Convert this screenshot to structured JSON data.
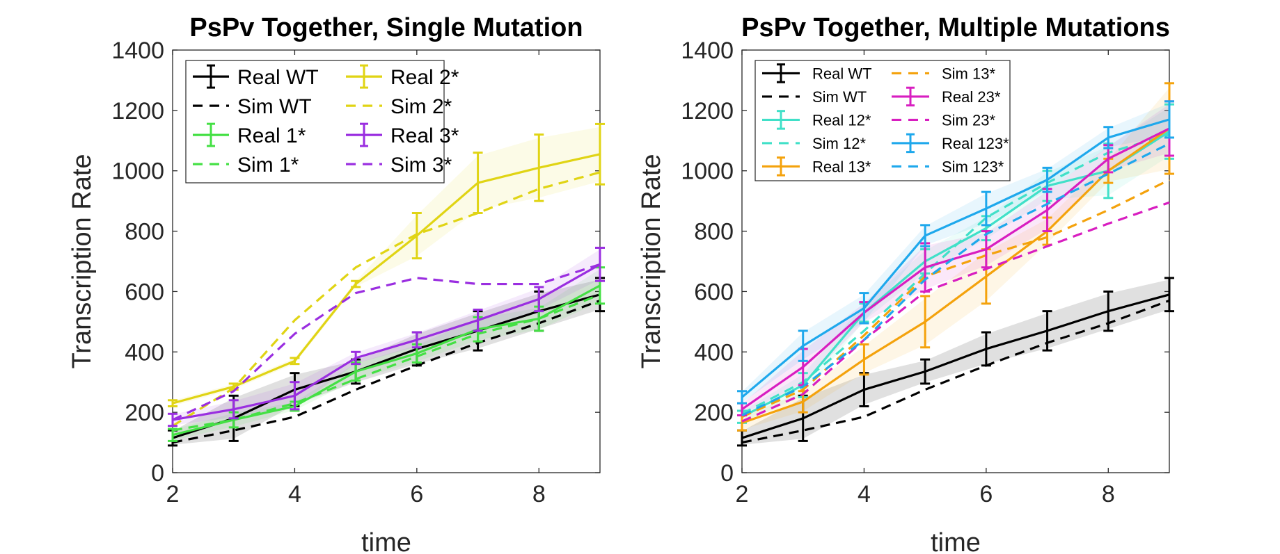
{
  "chart_data": [
    {
      "type": "line",
      "title": "PsPv Together, Single Mutation",
      "xlabel": "time",
      "ylabel": "Transcription Rate",
      "xlim": [
        2,
        9
      ],
      "ylim": [
        0,
        1400
      ],
      "xticks": [
        2,
        4,
        6,
        8
      ],
      "yticks": [
        0,
        200,
        400,
        600,
        800,
        1000,
        1200,
        1400
      ],
      "x": [
        2,
        3,
        4,
        5,
        6,
        7,
        8,
        9
      ],
      "legend_placement": "top-left",
      "legend_columns": 2,
      "series": [
        {
          "name": "Real WT",
          "style": "solid",
          "errorbars": true,
          "color": "#000000",
          "values": [
            115,
            180,
            275,
            335,
            410,
            470,
            535,
            590
          ],
          "errors": [
            25,
            75,
            55,
            40,
            55,
            65,
            65,
            55
          ]
        },
        {
          "name": "Sim WT",
          "style": "dashed",
          "color": "#000000",
          "values": [
            100,
            140,
            185,
            275,
            355,
            430,
            495,
            570
          ]
        },
        {
          "name": "Real 1*",
          "style": "solid",
          "errorbars": true,
          "color": "#44e044",
          "values": [
            125,
            175,
            220,
            335,
            395,
            475,
            510,
            620
          ],
          "errors": [
            20,
            25,
            15,
            30,
            30,
            40,
            40,
            60
          ]
        },
        {
          "name": "Sim 1*",
          "style": "dashed",
          "color": "#44e044",
          "values": [
            140,
            175,
            230,
            310,
            385,
            460,
            510,
            590
          ]
        },
        {
          "name": "Real 2*",
          "style": "solid",
          "errorbars": true,
          "color": "#e0d414",
          "values": [
            230,
            285,
            370,
            625,
            785,
            960,
            1010,
            1055
          ],
          "errors": [
            10,
            10,
            10,
            10,
            75,
            100,
            110,
            100
          ]
        },
        {
          "name": "Sim 2*",
          "style": "dashed",
          "color": "#e0d414",
          "values": [
            155,
            280,
            505,
            680,
            790,
            860,
            940,
            995
          ]
        },
        {
          "name": "Real 3*",
          "style": "solid",
          "errorbars": true,
          "color": "#9a2ee0",
          "values": [
            175,
            210,
            255,
            380,
            440,
            505,
            575,
            690
          ],
          "errors": [
            20,
            30,
            45,
            20,
            25,
            35,
            40,
            55
          ]
        },
        {
          "name": "Sim 3*",
          "style": "dashed",
          "color": "#9a2ee0",
          "values": [
            175,
            270,
            460,
            595,
            645,
            625,
            625,
            690
          ]
        }
      ]
    },
    {
      "type": "line",
      "title": "PsPv Together, Multiple Mutations",
      "xlabel": "time",
      "ylabel": "Transcription Rate",
      "xlim": [
        2,
        9
      ],
      "ylim": [
        0,
        1400
      ],
      "xticks": [
        2,
        4,
        6,
        8
      ],
      "yticks": [
        0,
        200,
        400,
        600,
        800,
        1000,
        1200,
        1400
      ],
      "x": [
        2,
        3,
        4,
        5,
        6,
        7,
        8,
        9
      ],
      "legend_placement": "top-left",
      "legend_columns": 2,
      "series": [
        {
          "name": "Real WT",
          "style": "solid",
          "errorbars": true,
          "color": "#000000",
          "values": [
            115,
            180,
            275,
            335,
            410,
            470,
            535,
            590
          ],
          "errors": [
            25,
            75,
            55,
            40,
            55,
            65,
            65,
            55
          ]
        },
        {
          "name": "Sim WT",
          "style": "dashed",
          "color": "#000000",
          "values": [
            100,
            140,
            185,
            275,
            355,
            430,
            495,
            570
          ]
        },
        {
          "name": "Real 12*",
          "style": "solid",
          "errorbars": true,
          "color": "#40e0c8",
          "values": [
            185,
            290,
            530,
            700,
            810,
            950,
            1000,
            1130
          ],
          "errors": [
            20,
            40,
            30,
            40,
            40,
            50,
            90,
            90
          ]
        },
        {
          "name": "Sim 12*",
          "style": "dashed",
          "color": "#40e0c8",
          "values": [
            195,
            300,
            470,
            660,
            845,
            960,
            1060,
            1120
          ]
        },
        {
          "name": "Real 13*",
          "style": "solid",
          "errorbars": true,
          "color": "#f4a20c",
          "values": [
            165,
            235,
            375,
            500,
            650,
            800,
            1000,
            1140
          ],
          "errors": [
            25,
            35,
            50,
            85,
            90,
            45,
            40,
            150
          ]
        },
        {
          "name": "Sim 13*",
          "style": "dashed",
          "color": "#f4a20c",
          "values": [
            185,
            275,
            455,
            650,
            720,
            780,
            870,
            970
          ]
        },
        {
          "name": "Real 23*",
          "style": "solid",
          "errorbars": true,
          "color": "#d81ec0",
          "values": [
            210,
            350,
            530,
            680,
            740,
            870,
            1040,
            1140
          ],
          "errors": [
            20,
            60,
            35,
            80,
            60,
            70,
            45,
            90
          ]
        },
        {
          "name": "Sim 23*",
          "style": "dashed",
          "color": "#d81ec0",
          "values": [
            170,
            260,
            440,
            600,
            675,
            750,
            825,
            895
          ]
        },
        {
          "name": "Real 123*",
          "style": "solid",
          "errorbars": true,
          "color": "#1ea8ec",
          "values": [
            250,
            420,
            545,
            785,
            875,
            970,
            1110,
            1170
          ],
          "errors": [
            20,
            50,
            50,
            35,
            55,
            40,
            35,
            60
          ]
        },
        {
          "name": "Sim 123*",
          "style": "dashed",
          "color": "#1ea8ec",
          "values": [
            190,
            285,
            440,
            640,
            790,
            890,
            990,
            1090
          ]
        }
      ]
    }
  ]
}
